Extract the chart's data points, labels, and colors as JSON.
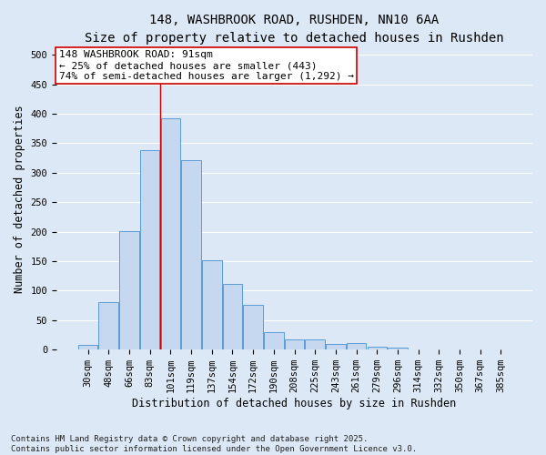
{
  "title_line1": "148, WASHBROOK ROAD, RUSHDEN, NN10 6AA",
  "title_line2": "Size of property relative to detached houses in Rushden",
  "xlabel": "Distribution of detached houses by size in Rushden",
  "ylabel": "Number of detached properties",
  "categories": [
    "30sqm",
    "48sqm",
    "66sqm",
    "83sqm",
    "101sqm",
    "119sqm",
    "137sqm",
    "154sqm",
    "172sqm",
    "190sqm",
    "208sqm",
    "225sqm",
    "243sqm",
    "261sqm",
    "279sqm",
    "296sqm",
    "314sqm",
    "332sqm",
    "350sqm",
    "367sqm",
    "385sqm"
  ],
  "values": [
    8,
    80,
    201,
    338,
    392,
    321,
    151,
    111,
    76,
    30,
    17,
    18,
    10,
    11,
    5,
    4,
    1,
    0,
    1,
    0,
    1
  ],
  "bar_color": "#c5d8f0",
  "bar_edge_color": "#5b9bd5",
  "vline_x_index": 3.5,
  "vline_color": "#cc0000",
  "annotation_text": "148 WASHBROOK ROAD: 91sqm\n← 25% of detached houses are smaller (443)\n74% of semi-detached houses are larger (1,292) →",
  "annotation_box_color": "#ffffff",
  "annotation_box_edge_color": "#cc0000",
  "ylim": [
    0,
    510
  ],
  "yticks": [
    0,
    50,
    100,
    150,
    200,
    250,
    300,
    350,
    400,
    450,
    500
  ],
  "background_color": "#dce8f5",
  "grid_color": "#ffffff",
  "footer_line1": "Contains HM Land Registry data © Crown copyright and database right 2025.",
  "footer_line2": "Contains public sector information licensed under the Open Government Licence v3.0.",
  "title_fontsize": 10,
  "subtitle_fontsize": 9,
  "axis_label_fontsize": 8.5,
  "tick_fontsize": 7.5,
  "annotation_fontsize": 8,
  "footer_fontsize": 6.5
}
